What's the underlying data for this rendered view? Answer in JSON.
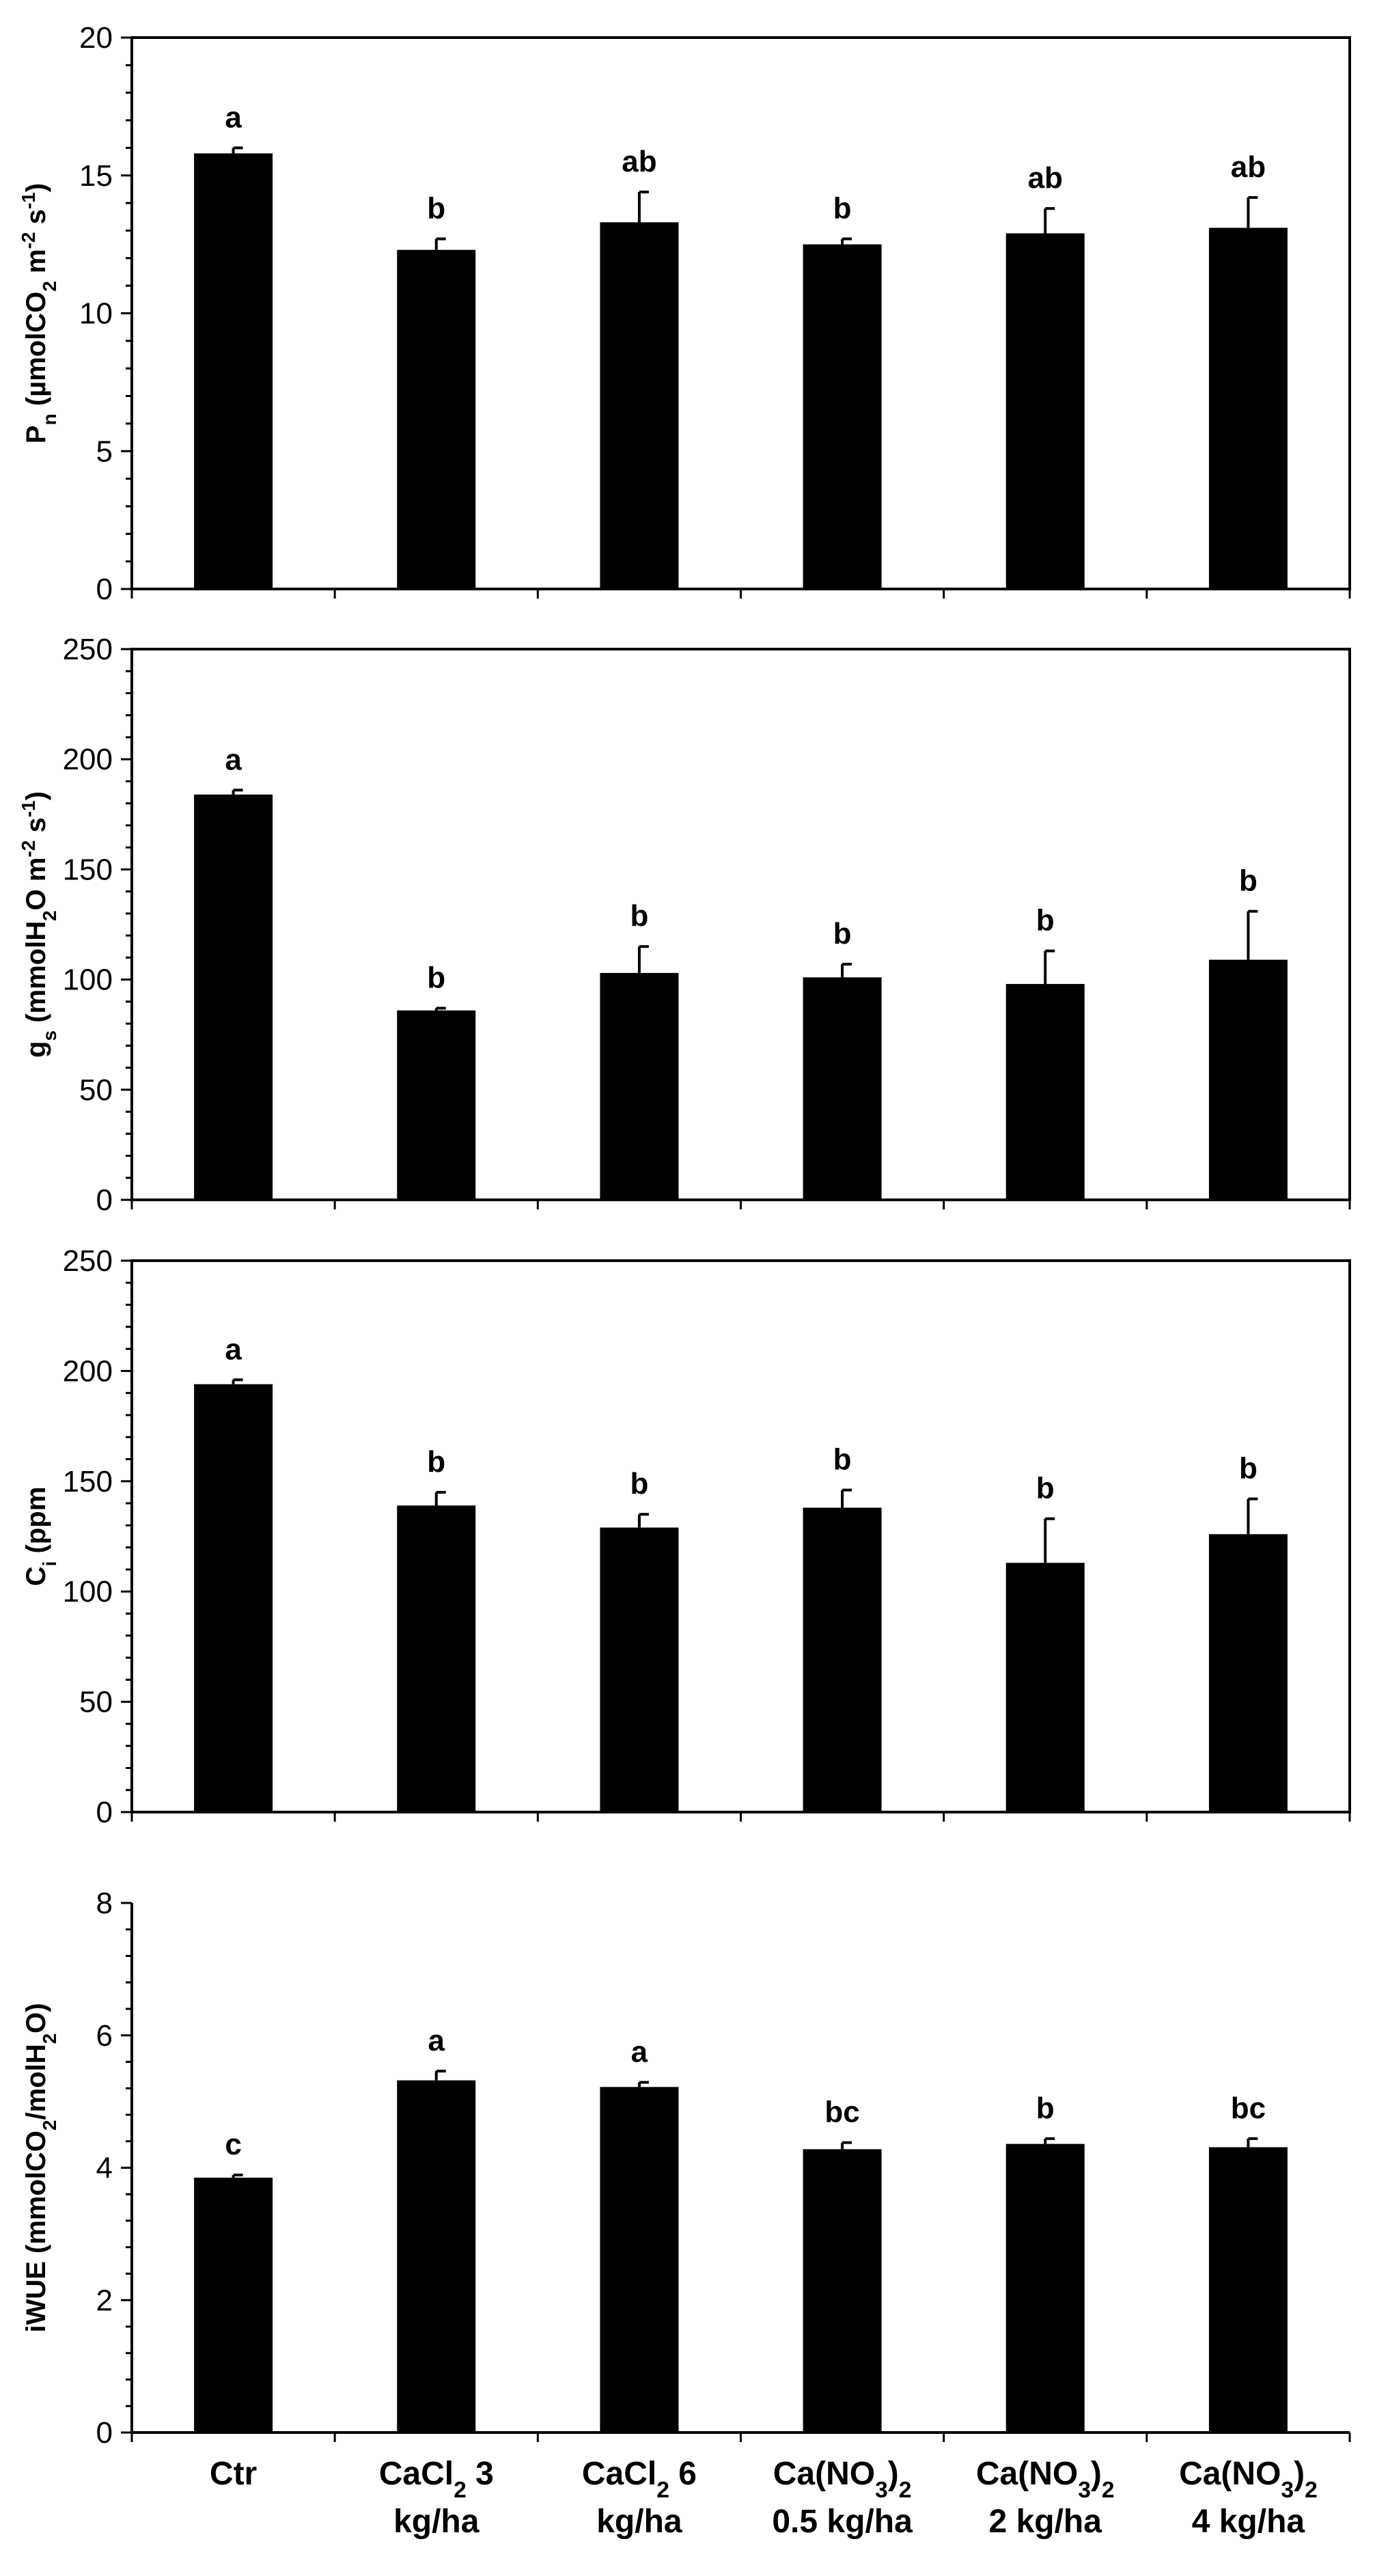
{
  "chart_data": [
    {
      "type": "bar",
      "ylabel": "Pn (µmolCO2 m-2 s-1)",
      "ylabel_parts": [
        [
          "P",
          ""
        ],
        [
          "n",
          "sub"
        ],
        [
          " (µmolCO",
          ""
        ],
        [
          "2",
          "sub"
        ],
        [
          " m",
          ""
        ],
        [
          "-2",
          "sup"
        ],
        [
          " s",
          ""
        ],
        [
          "-1",
          "sup"
        ],
        [
          ")",
          ""
        ]
      ],
      "ylim": [
        0,
        20
      ],
      "yticks": [
        0,
        5,
        10,
        15,
        20
      ],
      "values": [
        15.8,
        12.3,
        13.3,
        12.5,
        12.9,
        13.1
      ],
      "errors": [
        0.2,
        0.4,
        1.1,
        0.2,
        0.9,
        1.1
      ],
      "letters": [
        "a",
        "b",
        "ab",
        "b",
        "ab",
        "ab"
      ]
    },
    {
      "type": "bar",
      "ylabel": "gs (mmolH2O m-2 s-1)",
      "ylabel_parts": [
        [
          "g",
          ""
        ],
        [
          "s",
          "sub"
        ],
        [
          " (mmolH",
          ""
        ],
        [
          "2",
          "sub"
        ],
        [
          "O m",
          ""
        ],
        [
          "-2",
          "sup"
        ],
        [
          " s",
          ""
        ],
        [
          "-1",
          "sup"
        ],
        [
          ")",
          ""
        ]
      ],
      "ylim": [
        0,
        250
      ],
      "yticks": [
        0,
        50,
        100,
        150,
        200,
        250
      ],
      "values": [
        184,
        86,
        103,
        101,
        98,
        109
      ],
      "errors": [
        2,
        1,
        12,
        6,
        15,
        22
      ],
      "letters": [
        "a",
        "b",
        "b",
        "b",
        "b",
        "b"
      ]
    },
    {
      "type": "bar",
      "ylabel": "Ci (ppm",
      "ylabel_parts": [
        [
          "C",
          ""
        ],
        [
          "i",
          "sub"
        ],
        [
          " (ppm",
          ""
        ]
      ],
      "ylim": [
        0,
        250
      ],
      "yticks": [
        0,
        50,
        100,
        150,
        200,
        250
      ],
      "values": [
        194,
        139,
        129,
        138,
        113,
        126
      ],
      "errors": [
        2,
        6,
        6,
        8,
        20,
        16
      ],
      "letters": [
        "a",
        "b",
        "b",
        "b",
        "b",
        "b"
      ]
    },
    {
      "type": "bar",
      "ylabel": "iWUE (mmolCO2/molH2O)",
      "ylabel_parts": [
        [
          "iWUE (mmolCO",
          ""
        ],
        [
          "2",
          "sub"
        ],
        [
          "/molH",
          ""
        ],
        [
          "2",
          "sub"
        ],
        [
          "O)",
          ""
        ]
      ],
      "ylim": [
        0,
        8
      ],
      "yticks": [
        0,
        2,
        4,
        6,
        8
      ],
      "values": [
        3.85,
        5.32,
        5.22,
        4.28,
        4.36,
        4.31
      ],
      "errors": [
        0.04,
        0.14,
        0.07,
        0.1,
        0.08,
        0.13
      ],
      "letters": [
        "c",
        "a",
        "a",
        "bc",
        "b",
        "bc"
      ]
    }
  ],
  "categories": [
    {
      "line1": [
        [
          "Ctr",
          ""
        ]
      ],
      "line2": []
    },
    {
      "line1": [
        [
          "CaCl",
          ""
        ],
        [
          "2",
          "sub"
        ],
        [
          " 3",
          ""
        ]
      ],
      "line2": [
        [
          "kg/ha",
          ""
        ]
      ]
    },
    {
      "line1": [
        [
          "CaCl",
          ""
        ],
        [
          "2",
          "sub"
        ],
        [
          " 6",
          ""
        ]
      ],
      "line2": [
        [
          "kg/ha",
          ""
        ]
      ]
    },
    {
      "line1": [
        [
          "Ca(NO",
          ""
        ],
        [
          "3",
          "sub"
        ],
        [
          ")",
          ""
        ],
        [
          "2",
          "sub"
        ]
      ],
      "line2": [
        [
          "0.5 kg/ha",
          ""
        ]
      ]
    },
    {
      "line1": [
        [
          "Ca(NO",
          ""
        ],
        [
          "3",
          "sub"
        ],
        [
          ")",
          ""
        ],
        [
          "2",
          "sub"
        ]
      ],
      "line2": [
        [
          "2 kg/ha",
          ""
        ]
      ]
    },
    {
      "line1": [
        [
          "Ca(NO",
          ""
        ],
        [
          "3",
          "sub"
        ],
        [
          ")",
          ""
        ],
        [
          "2",
          "sub"
        ]
      ],
      "line2": [
        [
          "4 kg/ha",
          ""
        ]
      ]
    }
  ]
}
